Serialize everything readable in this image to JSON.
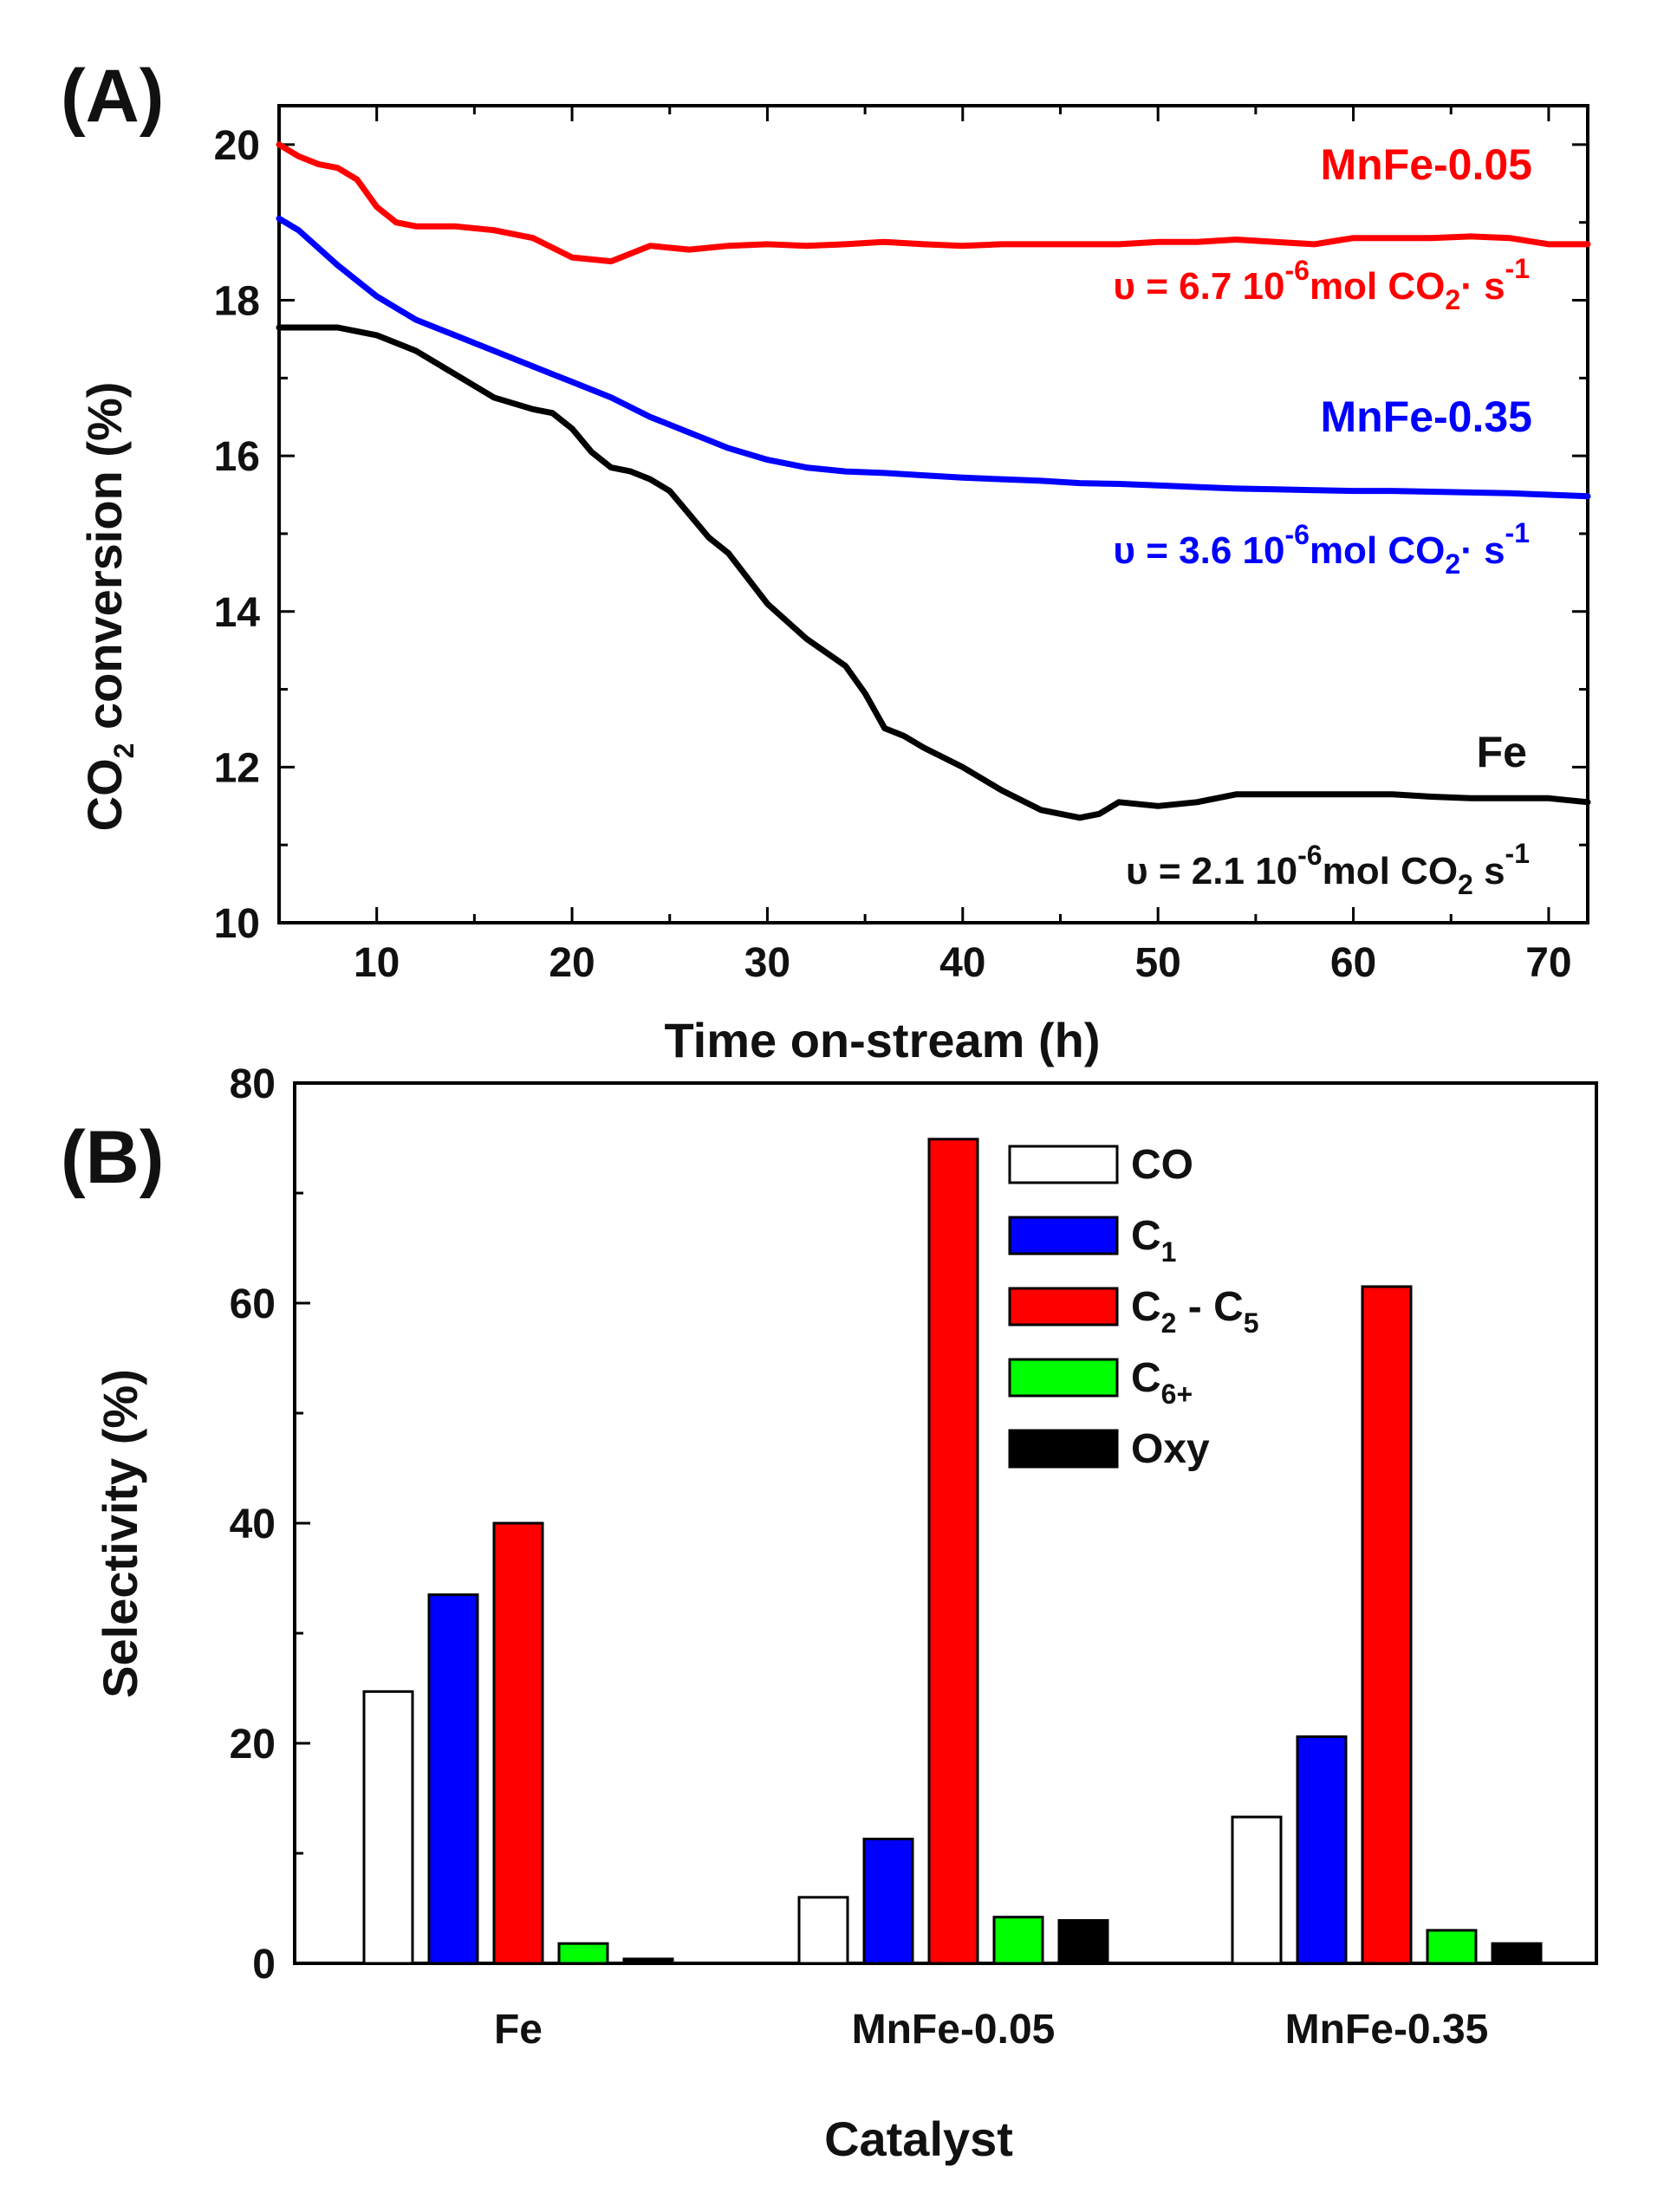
{
  "chart_data": [
    {
      "panel": "(A)",
      "type": "line",
      "xlabel": "Time  on-stream (h)",
      "ylabel": {
        "main": "CO",
        "sub": "2",
        "rest": " conversion (%)"
      },
      "xlim": [
        5,
        72
      ],
      "ylim": [
        10,
        20.5
      ],
      "xticks": [
        10,
        20,
        30,
        40,
        50,
        60,
        70
      ],
      "yticks": [
        10,
        12,
        14,
        16,
        18,
        20
      ],
      "series": [
        {
          "name": "MnFe-0.05",
          "color": "#ff0000",
          "x": [
            5,
            6,
            7,
            8,
            9,
            10,
            11,
            12,
            14,
            16,
            18,
            20,
            22,
            24,
            26,
            28,
            30,
            32,
            34,
            36,
            38,
            40,
            42,
            44,
            46,
            48,
            50,
            52,
            54,
            56,
            58,
            60,
            62,
            64,
            66,
            68,
            70,
            72
          ],
          "y": [
            20.0,
            19.85,
            19.75,
            19.7,
            19.55,
            19.2,
            19.0,
            18.95,
            18.95,
            18.9,
            18.8,
            18.55,
            18.5,
            18.7,
            18.65,
            18.7,
            18.72,
            18.7,
            18.72,
            18.75,
            18.72,
            18.7,
            18.72,
            18.72,
            18.72,
            18.72,
            18.75,
            18.75,
            18.78,
            18.75,
            18.72,
            18.8,
            18.8,
            18.8,
            18.82,
            18.8,
            18.72,
            18.72
          ]
        },
        {
          "name": "MnFe-0.35",
          "color": "#0000ff",
          "x": [
            5,
            6,
            8,
            10,
            12,
            14,
            16,
            18,
            20,
            22,
            24,
            26,
            28,
            30,
            32,
            34,
            36,
            38,
            40,
            42,
            44,
            46,
            48,
            50,
            52,
            54,
            56,
            58,
            60,
            62,
            64,
            66,
            68,
            70,
            72
          ],
          "y": [
            19.05,
            18.9,
            18.45,
            18.05,
            17.75,
            17.55,
            17.35,
            17.15,
            16.95,
            16.75,
            16.5,
            16.3,
            16.1,
            15.95,
            15.85,
            15.8,
            15.78,
            15.75,
            15.72,
            15.7,
            15.68,
            15.65,
            15.64,
            15.62,
            15.6,
            15.58,
            15.57,
            15.56,
            15.55,
            15.55,
            15.54,
            15.53,
            15.52,
            15.5,
            15.48
          ]
        },
        {
          "name": "Fe",
          "color": "#000000",
          "x": [
            5,
            6,
            8,
            10,
            12,
            14,
            16,
            18,
            19,
            20,
            21,
            22,
            23,
            24,
            25,
            26,
            27,
            28,
            30,
            32,
            34,
            35,
            36,
            37,
            38,
            40,
            42,
            44,
            46,
            47,
            48,
            50,
            52,
            54,
            56,
            58,
            60,
            62,
            64,
            66,
            68,
            70,
            72
          ],
          "y": [
            17.65,
            17.65,
            17.65,
            17.55,
            17.35,
            17.05,
            16.75,
            16.6,
            16.55,
            16.35,
            16.05,
            15.85,
            15.8,
            15.7,
            15.55,
            15.25,
            14.95,
            14.75,
            14.1,
            13.65,
            13.3,
            12.95,
            12.5,
            12.4,
            12.25,
            12.0,
            11.7,
            11.45,
            11.35,
            11.4,
            11.55,
            11.5,
            11.55,
            11.65,
            11.65,
            11.65,
            11.65,
            11.65,
            11.62,
            11.6,
            11.6,
            11.6,
            11.55
          ]
        }
      ],
      "annotations": [
        {
          "series": "MnFe-0.05",
          "name_label": "MnFe-0.05",
          "rate": {
            "prefix": "υ = 6.7 10",
            "exp": "-6",
            "mid": "mol CO",
            "sub": "2",
            "after": "· s",
            "sup": "-1"
          }
        },
        {
          "series": "MnFe-0.35",
          "name_label": "MnFe-0.35",
          "rate": {
            "prefix": "υ = 3.6 10",
            "exp": "-6",
            "mid": "mol CO",
            "sub": "2",
            "after": "· s",
            "sup": "-1"
          }
        },
        {
          "series": "Fe",
          "name_label": "Fe",
          "rate": {
            "prefix": "υ = 2.1 10",
            "exp": "-6",
            "mid": "mol CO",
            "sub": "2",
            "after": "  s",
            "sup": "-1"
          }
        }
      ]
    },
    {
      "panel": "(B)",
      "type": "bar",
      "xlabel": "Catalyst",
      "ylabel": "Selectivity (%)",
      "ylim": [
        0,
        80
      ],
      "yticks": [
        0,
        20,
        40,
        60,
        80
      ],
      "categories": [
        "Fe",
        "MnFe-0.05",
        "MnFe-0.35"
      ],
      "series": [
        {
          "name": "CO",
          "legend_main": "CO",
          "legend_sub": "",
          "legend_rest": "",
          "color": "#ffffff",
          "values": [
            24.7,
            6.0,
            13.3
          ]
        },
        {
          "name": "C1",
          "legend_main": "C",
          "legend_sub": "1",
          "legend_rest": "",
          "color": "#0000ff",
          "values": [
            33.5,
            11.3,
            20.6
          ]
        },
        {
          "name": "C2 - C5",
          "legend_main": "C",
          "legend_sub": "2",
          "legend_rest": " - C",
          "legend_sub2": "5",
          "color": "#ff0000",
          "values": [
            40.0,
            74.9,
            61.5
          ]
        },
        {
          "name": "C6+",
          "legend_main": "C",
          "legend_sub": "6+",
          "legend_rest": "",
          "color": "#00ff00",
          "values": [
            1.8,
            4.2,
            3.0
          ]
        },
        {
          "name": "Oxy",
          "legend_main": "Oxy",
          "legend_sub": "",
          "legend_rest": "",
          "color": "#000000",
          "values": [
            0.4,
            3.9,
            1.8
          ]
        }
      ]
    }
  ]
}
